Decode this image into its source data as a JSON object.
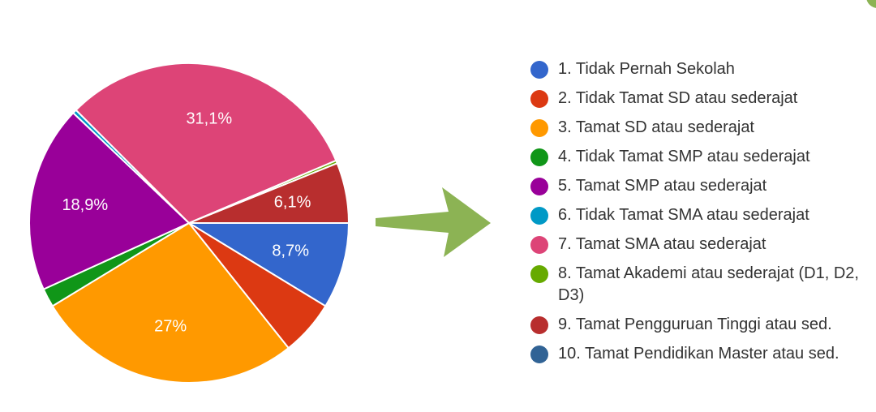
{
  "chart_data": {
    "type": "pie",
    "series": [
      {
        "label": "1. Tidak Pernah Sekolah",
        "value": 8.7,
        "data_label": "8,7%",
        "color": "#3366cc"
      },
      {
        "label": "2. Tidak Tamat SD atau sederajat",
        "value": 5.6,
        "data_label": "",
        "color": "#dc3912"
      },
      {
        "label": "3. Tamat SD atau sederajat",
        "value": 27.0,
        "data_label": "27%",
        "color": "#ff9900"
      },
      {
        "label": "4. Tidak Tamat SMP atau sederajat",
        "value": 1.9,
        "data_label": "",
        "color": "#109618"
      },
      {
        "label": "5. Tamat SMP atau sederajat",
        "value": 18.9,
        "data_label": "18,9%",
        "color": "#990099"
      },
      {
        "label": "6. Tidak Tamat SMA atau sederajat",
        "value": 0.4,
        "data_label": "",
        "color": "#0099c6"
      },
      {
        "label": "7. Tamat SMA atau sederajat",
        "value": 31.1,
        "data_label": "31,1%",
        "color": "#dd4477"
      },
      {
        "label": "8. Tamat Akademi atau sederajat (D1, D2, D3)",
        "value": 0.3,
        "data_label": "",
        "color": "#66aa00"
      },
      {
        "label": "9. Tamat Pengguruan Tinggi atau sed.",
        "value": 6.1,
        "data_label": "6,1%",
        "color": "#b82e2e"
      },
      {
        "label": "10. Tamat Pendidikan Master atau sed.",
        "value": 0.0,
        "data_label": "",
        "color": "#316395"
      }
    ],
    "start_direction": "east",
    "direction": "clockwise",
    "legend_position": "right"
  },
  "decor": {
    "arrow_color": "#8cb354",
    "corner_color": "#8cb354"
  }
}
